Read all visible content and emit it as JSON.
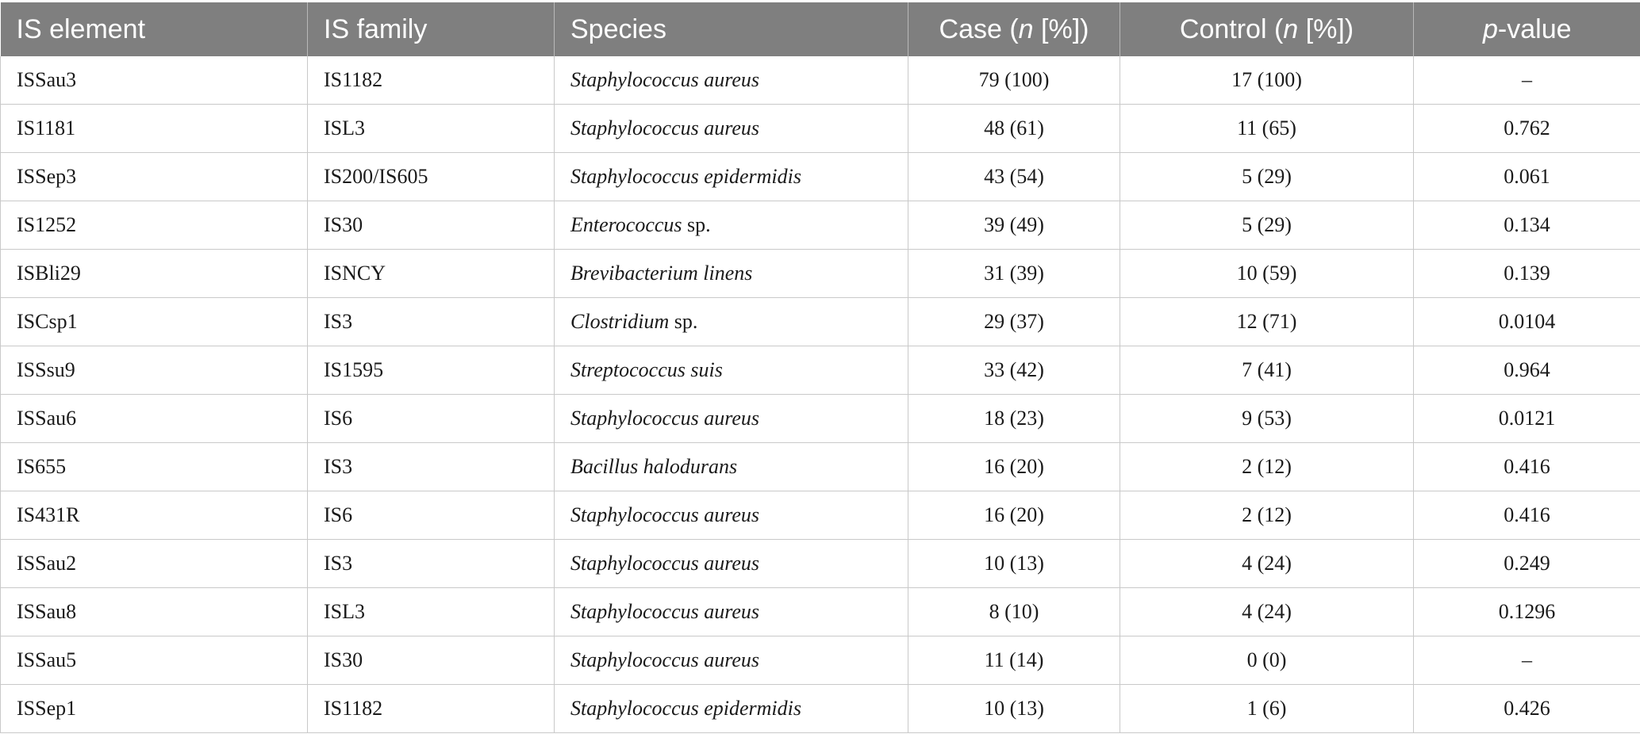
{
  "table": {
    "header": {
      "is_element": "IS element",
      "is_family": "IS family",
      "species": "Species",
      "case_prefix": "Case (",
      "case_n": "n",
      "case_suffix": " [%])",
      "control_prefix": "Control (",
      "control_n": "n",
      "control_suffix": " [%])",
      "pvalue_p": "p",
      "pvalue_suffix": "-value"
    },
    "rows": [
      {
        "element": "ISSau3",
        "family": "IS1182",
        "species_italic": "Staphylococcus aureus",
        "species_plain": "",
        "case": "79 (100)",
        "control": "17 (100)",
        "pvalue": "–"
      },
      {
        "element": "IS1181",
        "family": "ISL3",
        "species_italic": "Staphylococcus aureus",
        "species_plain": "",
        "case": "48 (61)",
        "control": "11 (65)",
        "pvalue": "0.762"
      },
      {
        "element": "ISSep3",
        "family": "IS200/IS605",
        "species_italic": "Staphylococcus epidermidis",
        "species_plain": "",
        "case": "43 (54)",
        "control": "5 (29)",
        "pvalue": "0.061"
      },
      {
        "element": "IS1252",
        "family": "IS30",
        "species_italic": "Enterococcus",
        "species_plain": " sp.",
        "case": "39 (49)",
        "control": "5 (29)",
        "pvalue": "0.134"
      },
      {
        "element": "ISBli29",
        "family": "ISNCY",
        "species_italic": "Brevibacterium linens",
        "species_plain": "",
        "case": "31 (39)",
        "control": "10 (59)",
        "pvalue": "0.139"
      },
      {
        "element": "ISCsp1",
        "family": "IS3",
        "species_italic": "Clostridium",
        "species_plain": " sp.",
        "case": "29 (37)",
        "control": "12 (71)",
        "pvalue": "0.0104"
      },
      {
        "element": "ISSsu9",
        "family": "IS1595",
        "species_italic": "Streptococcus suis",
        "species_plain": "",
        "case": "33 (42)",
        "control": "7 (41)",
        "pvalue": "0.964"
      },
      {
        "element": "ISSau6",
        "family": "IS6",
        "species_italic": "Staphylococcus aureus",
        "species_plain": "",
        "case": "18 (23)",
        "control": "9 (53)",
        "pvalue": "0.0121"
      },
      {
        "element": "IS655",
        "family": "IS3",
        "species_italic": "Bacillus halodurans",
        "species_plain": "",
        "case": "16 (20)",
        "control": "2 (12)",
        "pvalue": "0.416"
      },
      {
        "element": "IS431R",
        "family": "IS6",
        "species_italic": "Staphylococcus aureus",
        "species_plain": "",
        "case": "16 (20)",
        "control": "2 (12)",
        "pvalue": "0.416"
      },
      {
        "element": "ISSau2",
        "family": "IS3",
        "species_italic": "Staphylococcus aureus",
        "species_plain": "",
        "case": "10 (13)",
        "control": "4 (24)",
        "pvalue": "0.249"
      },
      {
        "element": "ISSau8",
        "family": "ISL3",
        "species_italic": "Staphylococcus aureus",
        "species_plain": "",
        "case": "8 (10)",
        "control": "4 (24)",
        "pvalue": "0.1296"
      },
      {
        "element": "ISSau5",
        "family": "IS30",
        "species_italic": "Staphylococcus aureus",
        "species_plain": "",
        "case": "11 (14)",
        "control": "0 (0)",
        "pvalue": "–"
      },
      {
        "element": "ISSep1",
        "family": "IS1182",
        "species_italic": "Staphylococcus epidermidis",
        "species_plain": "",
        "case": "10 (13)",
        "control": "1 (6)",
        "pvalue": "0.426"
      }
    ]
  }
}
